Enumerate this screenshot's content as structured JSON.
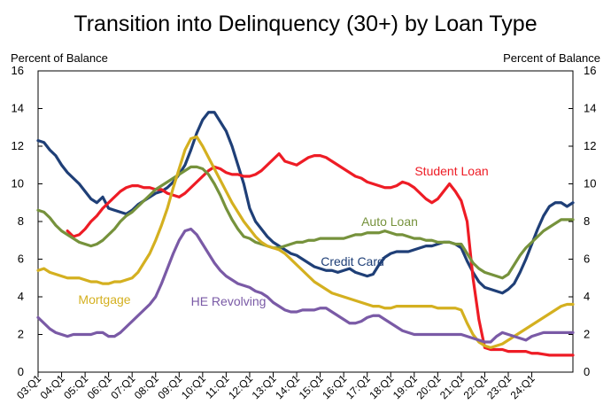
{
  "chart_data": {
    "type": "line",
    "title": "Transition into Delinquency (30+) by Loan Type",
    "ylabel_left": "Percent of Balance",
    "ylabel_right": "Percent of Balance",
    "ylim": [
      0,
      16
    ],
    "yticks": [
      0,
      2,
      4,
      6,
      8,
      10,
      12,
      14,
      16
    ],
    "grid": false,
    "legend": "inline labels",
    "x_start": "03:Q1",
    "x_end": "24:Q3",
    "x_tick_labels": [
      "03:Q1",
      "04:Q1",
      "05:Q1",
      "06:Q1",
      "07:Q1",
      "08:Q1",
      "09:Q1",
      "10:Q1",
      "11:Q1",
      "12:Q1",
      "13:Q1",
      "14:Q1",
      "15:Q1",
      "16:Q1",
      "17:Q1",
      "18:Q1",
      "19:Q1",
      "20:Q1",
      "21:Q1",
      "22:Q1",
      "23:Q1",
      "24:Q1"
    ],
    "series": [
      {
        "name": "Credit Card",
        "color": "#1f3f77",
        "values": [
          12.3,
          12.2,
          11.8,
          11.5,
          11.0,
          10.6,
          10.3,
          10.0,
          9.6,
          9.2,
          9.0,
          9.3,
          8.7,
          8.6,
          8.5,
          8.4,
          8.6,
          8.9,
          9.1,
          9.3,
          9.5,
          9.6,
          9.8,
          10.1,
          10.5,
          11.0,
          11.8,
          12.7,
          13.4,
          13.8,
          13.8,
          13.3,
          12.8,
          12.0,
          11.0,
          10.0,
          8.7,
          8.0,
          7.6,
          7.2,
          6.9,
          6.7,
          6.5,
          6.3,
          6.2,
          6.0,
          5.8,
          5.6,
          5.5,
          5.4,
          5.4,
          5.3,
          5.4,
          5.5,
          5.3,
          5.2,
          5.1,
          5.2,
          5.7,
          6.1,
          6.3,
          6.4,
          6.4,
          6.4,
          6.5,
          6.6,
          6.7,
          6.7,
          6.8,
          6.9,
          6.9,
          6.8,
          6.6,
          5.9,
          5.3,
          4.8,
          4.5,
          4.4,
          4.3,
          4.2,
          4.4,
          4.7,
          5.3,
          6.0,
          6.8,
          7.6,
          8.3,
          8.8,
          9.0,
          9.0,
          8.8,
          9.0
        ]
      },
      {
        "name": "Student Loan",
        "color": "#ee1c25",
        "values": [
          null,
          null,
          null,
          null,
          null,
          7.5,
          7.2,
          7.3,
          7.6,
          8.0,
          8.3,
          8.7,
          9.0,
          9.3,
          9.6,
          9.8,
          9.9,
          9.9,
          9.8,
          9.8,
          9.7,
          9.7,
          9.5,
          9.4,
          9.3,
          9.5,
          9.8,
          10.1,
          10.4,
          10.7,
          10.9,
          10.8,
          10.6,
          10.5,
          10.5,
          10.4,
          10.4,
          10.5,
          10.7,
          11.0,
          11.3,
          11.6,
          11.2,
          11.1,
          11.0,
          11.2,
          11.4,
          11.5,
          11.5,
          11.4,
          11.2,
          11.0,
          10.8,
          10.6,
          10.4,
          10.3,
          10.1,
          10.0,
          9.9,
          9.8,
          9.8,
          9.9,
          10.1,
          10.0,
          9.8,
          9.5,
          9.2,
          9.0,
          9.2,
          9.6,
          10.0,
          9.6,
          9.1,
          8.0,
          5.0,
          2.8,
          1.3,
          1.2,
          1.2,
          1.2,
          1.1,
          1.1,
          1.1,
          1.1,
          1.0,
          1.0,
          0.95,
          0.9,
          0.9,
          0.9,
          0.9,
          0.9
        ]
      },
      {
        "name": "Auto Loan",
        "color": "#76923c",
        "values": [
          8.6,
          8.5,
          8.2,
          7.8,
          7.5,
          7.3,
          7.1,
          6.9,
          6.8,
          6.7,
          6.8,
          7.0,
          7.3,
          7.6,
          8.0,
          8.3,
          8.5,
          8.8,
          9.1,
          9.4,
          9.7,
          9.9,
          10.1,
          10.3,
          10.5,
          10.7,
          10.9,
          10.9,
          10.8,
          10.5,
          10.0,
          9.4,
          8.7,
          8.1,
          7.6,
          7.2,
          7.1,
          6.9,
          6.8,
          6.7,
          6.6,
          6.6,
          6.7,
          6.8,
          6.9,
          6.9,
          7.0,
          7.0,
          7.1,
          7.1,
          7.1,
          7.1,
          7.1,
          7.2,
          7.3,
          7.3,
          7.4,
          7.4,
          7.4,
          7.5,
          7.4,
          7.3,
          7.3,
          7.2,
          7.1,
          7.1,
          7.0,
          7.0,
          6.9,
          6.9,
          6.9,
          6.8,
          6.8,
          6.3,
          5.8,
          5.5,
          5.3,
          5.2,
          5.1,
          5.0,
          5.2,
          5.7,
          6.2,
          6.6,
          6.9,
          7.2,
          7.5,
          7.7,
          7.9,
          8.1,
          8.1,
          8.1
        ]
      },
      {
        "name": "Mortgage",
        "color": "#d4b020",
        "values": [
          5.4,
          5.5,
          5.3,
          5.2,
          5.1,
          5.0,
          5.0,
          5.0,
          4.9,
          4.8,
          4.8,
          4.7,
          4.7,
          4.8,
          4.8,
          4.9,
          5.0,
          5.3,
          5.8,
          6.3,
          7.0,
          7.8,
          8.7,
          9.8,
          10.8,
          11.8,
          12.4,
          12.5,
          12.0,
          11.4,
          10.8,
          10.2,
          9.6,
          9.0,
          8.5,
          8.0,
          7.6,
          7.2,
          6.9,
          6.7,
          6.6,
          6.5,
          6.3,
          6.0,
          5.7,
          5.4,
          5.1,
          4.8,
          4.6,
          4.4,
          4.2,
          4.1,
          4.0,
          3.9,
          3.8,
          3.7,
          3.6,
          3.5,
          3.5,
          3.4,
          3.4,
          3.5,
          3.5,
          3.5,
          3.5,
          3.5,
          3.5,
          3.5,
          3.4,
          3.4,
          3.4,
          3.4,
          3.3,
          2.6,
          2.0,
          1.6,
          1.4,
          1.3,
          1.4,
          1.5,
          1.7,
          1.9,
          2.1,
          2.3,
          2.5,
          2.7,
          2.9,
          3.1,
          3.3,
          3.5,
          3.6,
          3.6
        ]
      },
      {
        "name": "HE Revolving",
        "color": "#7a5aa6",
        "values": [
          2.9,
          2.6,
          2.3,
          2.1,
          2.0,
          1.9,
          2.0,
          2.0,
          2.0,
          2.0,
          2.1,
          2.1,
          1.9,
          1.9,
          2.1,
          2.4,
          2.7,
          3.0,
          3.3,
          3.6,
          4.0,
          4.7,
          5.5,
          6.3,
          7.0,
          7.5,
          7.6,
          7.3,
          6.8,
          6.3,
          5.8,
          5.4,
          5.1,
          4.9,
          4.7,
          4.6,
          4.5,
          4.3,
          4.2,
          4.0,
          3.7,
          3.5,
          3.3,
          3.2,
          3.2,
          3.3,
          3.3,
          3.3,
          3.4,
          3.4,
          3.2,
          3.0,
          2.8,
          2.6,
          2.6,
          2.7,
          2.9,
          3.0,
          3.0,
          2.8,
          2.6,
          2.4,
          2.2,
          2.1,
          2.0,
          2.0,
          2.0,
          2.0,
          2.0,
          2.0,
          2.0,
          2.0,
          2.0,
          1.9,
          1.8,
          1.7,
          1.6,
          1.6,
          1.9,
          2.1,
          2.0,
          1.9,
          1.8,
          1.7,
          1.9,
          2.0,
          2.1,
          2.1,
          2.1,
          2.1,
          2.1,
          2.1
        ]
      }
    ]
  }
}
